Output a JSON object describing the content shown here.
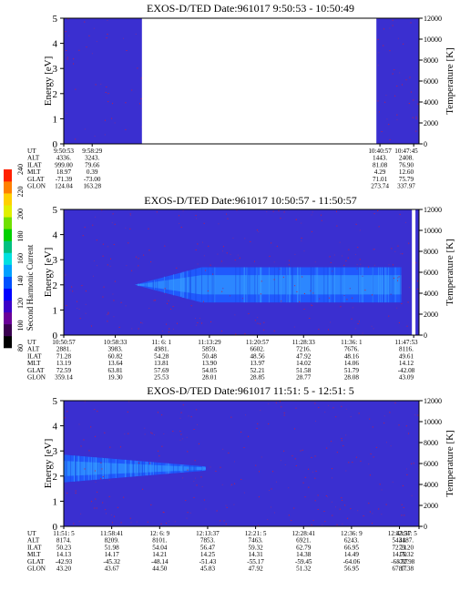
{
  "colorbar": {
    "label": "Second Harmonic Current",
    "ticks": [
      "80",
      "100",
      "120",
      "140",
      "160",
      "180",
      "200",
      "220",
      "240"
    ],
    "colors": [
      "#000000",
      "#3a0050",
      "#6a0099",
      "#3b00c8",
      "#0000ff",
      "#0050ff",
      "#00a0ff",
      "#00e0e0",
      "#00c080",
      "#00d000",
      "#70e000",
      "#e0f000",
      "#ffd000",
      "#ff8000",
      "#ff2000"
    ]
  },
  "chart_data": [
    {
      "type": "heatmap",
      "title": "EXOS-D/TED   Date:961017  9:50:53 - 10:50:49",
      "ylabel": "Energy [eV]",
      "y2label": "Temperature [K]",
      "ylim": [
        0,
        5
      ],
      "y2lim": [
        0,
        12000
      ],
      "yticks": [
        "0",
        "1",
        "2",
        "3",
        "4",
        "5"
      ],
      "y2ticks": [
        "0",
        "2000",
        "4000",
        "6000",
        "8000",
        "10000",
        "12000"
      ],
      "data_gaps": [
        [
          0.22,
          0.88
        ]
      ],
      "band": null,
      "row_labels": [
        "UT",
        "ALT",
        "ILAT",
        "MLT",
        "GLAT",
        "GLON"
      ],
      "columns": [
        {
          "pos": 0.0,
          "ut": "9:50:53",
          "alt": "4336.",
          "ilat": "999.00",
          "mlt": "18.97",
          "glat": "-71.39",
          "glon": "124.04"
        },
        {
          "pos": 0.08,
          "ut": "9:58:29",
          "alt": "3243.",
          "ilat": "79.66",
          "mlt": "0.39",
          "glat": "-73.00",
          "glon": "163.28"
        },
        {
          "pos": 0.89,
          "ut": "10:40:57",
          "alt": "1443.",
          "ilat": "81.08",
          "mlt": "4.29",
          "glat": "71.01",
          "glon": "273.74"
        },
        {
          "pos": 0.985,
          "ut": "10:47:45",
          "alt": "2408.",
          "ilat": "76.90",
          "mlt": "12.60",
          "glat": "75.79",
          "glon": "337.97"
        }
      ]
    },
    {
      "type": "heatmap",
      "title": "EXOS-D/TED   Date:961017  10:50:57 - 11:50:57",
      "ylabel": "Energy [eV]",
      "y2label": "Temperature [K]",
      "ylim": [
        0,
        5
      ],
      "y2lim": [
        0,
        12000
      ],
      "yticks": [
        "0",
        "1",
        "2",
        "3",
        "4",
        "5"
      ],
      "y2ticks": [
        "0",
        "2000",
        "4000",
        "6000",
        "8000",
        "10000",
        "12000"
      ],
      "data_gaps": [
        [
          0.98,
          0.99
        ]
      ],
      "band": {
        "center_x": [
          0.2,
          0.95
        ],
        "center_ev": 2.0,
        "halfwidth_ev": 0.7
      },
      "row_labels": [
        "UT",
        "ALT",
        "ILAT",
        "MLT",
        "GLAT",
        "GLON"
      ],
      "columns": [
        {
          "pos": 0.0,
          "ut": "10:50:57",
          "alt": "2881.",
          "ilat": "71.28",
          "mlt": "13.19",
          "glat": "72.59",
          "glon": "359.14"
        },
        {
          "pos": 0.145,
          "ut": "10:58:33",
          "alt": "3983.",
          "ilat": "60.82",
          "mlt": "13.64",
          "glat": "63.81",
          "glon": "19.30"
        },
        {
          "pos": 0.275,
          "ut": "11: 6: 1",
          "alt": "4981.",
          "ilat": "54.28",
          "mlt": "13.81",
          "glat": "57.69",
          "glon": "25.53"
        },
        {
          "pos": 0.41,
          "ut": "11:13:29",
          "alt": "5859.",
          "ilat": "50.48",
          "mlt": "13.90",
          "glat": "54.05",
          "glon": "28.01"
        },
        {
          "pos": 0.545,
          "ut": "11:20:57",
          "alt": "6602.",
          "ilat": "48.56",
          "mlt": "13.97",
          "glat": "52.21",
          "glon": "28.85"
        },
        {
          "pos": 0.675,
          "ut": "11:28:33",
          "alt": "7216.",
          "ilat": "47.92",
          "mlt": "14.02",
          "glat": "51.58",
          "glon": "28.77"
        },
        {
          "pos": 0.81,
          "ut": "11:36: 1",
          "alt": "7676.",
          "ilat": "48.16",
          "mlt": "14.06",
          "glat": "51.79",
          "glon": "28.08"
        },
        {
          "pos": 0.985,
          "ut": "11:47:53",
          "alt": "8116.",
          "ilat": "49.61",
          "mlt": "14.12",
          "glat": "-42.08",
          "glon": "43.09"
        }
      ]
    },
    {
      "type": "heatmap",
      "title": "EXOS-D/TED   Date:961017  11:51: 5 - 12:51: 5",
      "ylabel": "Energy [eV]",
      "y2label": "Temperature [K]",
      "ylim": [
        0,
        5
      ],
      "y2lim": [
        0,
        12000
      ],
      "yticks": [
        "0",
        "1",
        "2",
        "3",
        "4",
        "5"
      ],
      "y2ticks": [
        "0",
        "2000",
        "4000",
        "6000",
        "8000",
        "10000",
        "12000"
      ],
      "data_gaps": [],
      "band": {
        "center_x": [
          0.0,
          0.4
        ],
        "center_ev": 2.3,
        "halfwidth_ev": 0.55
      },
      "row_labels": [
        "UT",
        "ALT",
        "ILAT",
        "MLT",
        "GLAT",
        "GLON"
      ],
      "columns": [
        {
          "pos": 0.0,
          "ut": "11:51: 5",
          "alt": "8174.",
          "ilat": "50.23",
          "mlt": "14.13",
          "glat": "-42.93",
          "glon": "43.20"
        },
        {
          "pos": 0.135,
          "ut": "11:58:41",
          "alt": "8209.",
          "ilat": "51.98",
          "mlt": "14.17",
          "glat": "-45.32",
          "glon": "43.67"
        },
        {
          "pos": 0.27,
          "ut": "12: 6: 9",
          "alt": "8101.",
          "ilat": "54.04",
          "mlt": "14.21",
          "glat": "-48.14",
          "glon": "44.50"
        },
        {
          "pos": 0.405,
          "ut": "12:13:37",
          "alt": "7853.",
          "ilat": "56.47",
          "mlt": "14.25",
          "glat": "-51.43",
          "glon": "45.83"
        },
        {
          "pos": 0.54,
          "ut": "12:21: 5",
          "alt": "7463.",
          "ilat": "59.32",
          "mlt": "14.31",
          "glat": "-55.17",
          "glon": "47.92"
        },
        {
          "pos": 0.675,
          "ut": "12:28:41",
          "alt": "6921.",
          "ilat": "62.79",
          "mlt": "14.38",
          "glat": "-59.45",
          "glon": "51.32"
        },
        {
          "pos": 0.81,
          "ut": "12:36: 9",
          "alt": "6243.",
          "ilat": "66.95",
          "mlt": "14.49",
          "glat": "-64.06",
          "glon": "56.95"
        },
        {
          "pos": 0.945,
          "ut": "12:43:37",
          "alt": "5431.",
          "ilat": "72.21",
          "mlt": "14.70",
          "glat": "-68.87",
          "glon": "67.17"
        },
        {
          "pos": 1.0,
          "ut": "12:51: 5",
          "alt": "4487.",
          "ilat": "79.20",
          "mlt": "15.32",
          "glat": "-72.98",
          "glon": "87.38"
        }
      ]
    }
  ]
}
